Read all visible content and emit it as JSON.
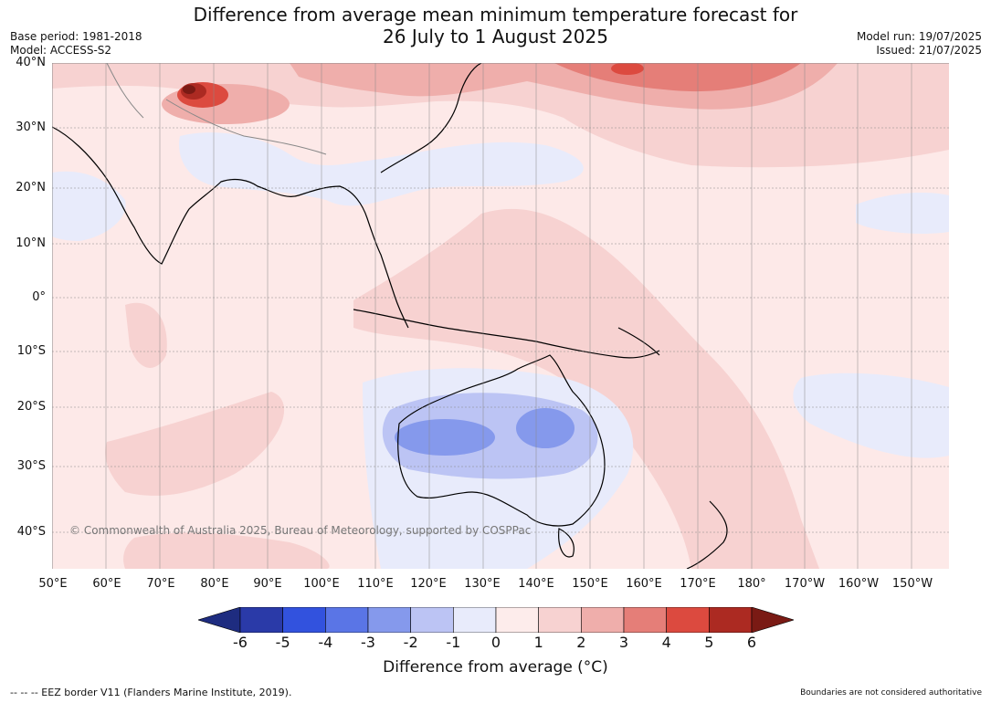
{
  "title_line1": "Difference from average mean minimum temperature forecast for",
  "title_line2": "26 July to 1 August 2025",
  "meta_left": [
    "Base period: 1981-2018",
    "Model: ACCESS-S2"
  ],
  "meta_right": [
    "Model run: 19/07/2025",
    "Issued: 21/07/2025"
  ],
  "latitudes": [
    "40°N",
    "30°N",
    "20°N",
    "10°N",
    "0°",
    "10°S",
    "20°S",
    "30°S",
    "40°S"
  ],
  "longitudes": [
    "50°E",
    "60°E",
    "70°E",
    "80°E",
    "90°E",
    "100°E",
    "110°E",
    "120°E",
    "130°E",
    "140°E",
    "150°E",
    "160°E",
    "170°E",
    "180°",
    "170°W",
    "160°W",
    "150°W"
  ],
  "copyright": "© Commonwealth of Australia 2025, Bureau of Meteorology, supported by COSPPac",
  "colorbar": {
    "ticks": [
      "-6",
      "-5",
      "-4",
      "-3",
      "-2",
      "-1",
      "0",
      "1",
      "2",
      "3",
      "4",
      "5",
      "6"
    ],
    "colors": [
      "#2a3aa8",
      "#3252de",
      "#5a75e6",
      "#8599ec",
      "#bcc4f4",
      "#e8ebfb",
      "#fdeceb",
      "#f7d2d1",
      "#efaeab",
      "#e57e78",
      "#dc4a3f",
      "#ac2a22"
    ],
    "under_color": "#1e2c80",
    "over_color": "#7a1a14",
    "title": "Difference from average (°C)"
  },
  "footer_left": "--  --  -- EEZ border V11 (Flanders Marine Institute, 2019).",
  "footer_right": "Boundaries are not considered authoritative"
}
